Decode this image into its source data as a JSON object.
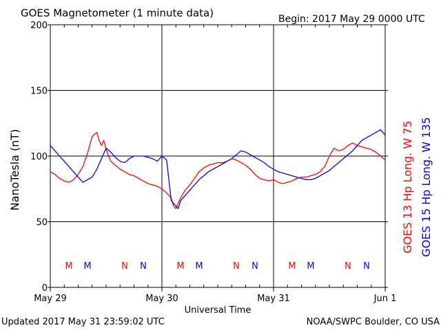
{
  "header": {
    "title": "GOES Magnetometer (1 minute data)",
    "begin": "Begin:  2017 May 29 0000 UTC"
  },
  "footer": {
    "updated": "Updated 2017 May 31 23:59:02 UTC",
    "source": "NOAA/SWPC Boulder, CO USA"
  },
  "colors": {
    "red": "#ff0000",
    "blue": "#0000ff",
    "axis": "#000000"
  },
  "chart_data": {
    "type": "line",
    "title": "GOES Magnetometer (1 minute data)",
    "xlabel": "Universal Time",
    "ylabel": "NanoTesla (nT)",
    "xlim": [
      0,
      72
    ],
    "ylim": [
      0,
      200
    ],
    "y_ticks": [
      0,
      50,
      100,
      150,
      200
    ],
    "x_ticks": [
      {
        "label": "May 29",
        "hour": 0
      },
      {
        "label": "May 30",
        "hour": 24
      },
      {
        "label": "May 31",
        "hour": 48
      },
      {
        "label": "Jun 1",
        "hour": 72
      }
    ],
    "grid": true,
    "series": [
      {
        "name": "GOES 13 Hp  Long. W 75",
        "color": "#ff0000",
        "x": [
          0,
          1,
          2,
          3,
          4,
          5,
          6,
          7,
          8,
          9,
          10,
          10.5,
          11,
          11.5,
          12,
          13,
          14,
          15,
          16,
          17,
          18,
          19,
          20,
          21,
          22,
          23,
          24,
          25,
          26,
          26.5,
          27,
          27.5,
          28,
          29,
          30,
          31,
          32,
          33,
          34,
          35,
          36,
          37,
          38,
          39,
          40,
          41,
          42,
          43,
          44,
          45,
          46,
          47,
          48,
          49,
          50,
          51,
          52,
          53,
          54,
          55,
          56,
          57,
          58,
          59,
          60,
          61,
          62,
          63,
          64,
          65,
          66,
          67,
          68,
          69,
          70,
          71,
          72
        ],
        "y": [
          88,
          86,
          83,
          81,
          80,
          82,
          86,
          92,
          102,
          115,
          118,
          112,
          108,
          112,
          105,
          96,
          93,
          90,
          88,
          86,
          85,
          83,
          81,
          79,
          78,
          77,
          75,
          72,
          68,
          62,
          60,
          64,
          68,
          74,
          78,
          83,
          88,
          91,
          93,
          94,
          95,
          95,
          96,
          98,
          97,
          95,
          93,
          90,
          86,
          83,
          82,
          81,
          82,
          80,
          79,
          80,
          81,
          83,
          84,
          84,
          85,
          86,
          88,
          92,
          100,
          106,
          104,
          105,
          108,
          110,
          108,
          107,
          106,
          105,
          103,
          100,
          97
        ]
      },
      {
        "name": "GOES 15 Hp  Long. W 135",
        "color": "#0000ff",
        "x": [
          0,
          1,
          2,
          3,
          4,
          5,
          6,
          7,
          8,
          9,
          10,
          11,
          12,
          13,
          14,
          15,
          16,
          17,
          18,
          19,
          20,
          21,
          22,
          23,
          24,
          25,
          25.5,
          26,
          27,
          27.5,
          28,
          29,
          30,
          31,
          32,
          33,
          34,
          35,
          36,
          37,
          38,
          39,
          40,
          41,
          42,
          43,
          44,
          45,
          46,
          47,
          48,
          49,
          50,
          51,
          52,
          53,
          54,
          55,
          56,
          57,
          58,
          59,
          60,
          61,
          62,
          63,
          64,
          65,
          66,
          67,
          68,
          69,
          70,
          71,
          72
        ],
        "y": [
          108,
          104,
          100,
          96,
          92,
          88,
          84,
          80,
          82,
          84,
          90,
          98,
          106,
          103,
          99,
          96,
          95,
          98,
          100,
          100,
          100,
          99,
          98,
          96,
          100,
          97,
          82,
          66,
          62,
          60,
          66,
          70,
          74,
          78,
          82,
          85,
          88,
          90,
          92,
          94,
          96,
          98,
          101,
          104,
          103,
          101,
          99,
          97,
          95,
          92,
          90,
          88,
          87,
          86,
          85,
          84,
          83,
          82,
          82,
          83,
          85,
          87,
          89,
          92,
          95,
          98,
          101,
          104,
          108,
          112,
          114,
          116,
          118,
          120,
          116
        ]
      }
    ],
    "markers": [
      {
        "label": "M",
        "hour": 4.0,
        "color": "#ff0000"
      },
      {
        "label": "M",
        "hour": 8.0,
        "color": "#0000ff"
      },
      {
        "label": "N",
        "hour": 16.0,
        "color": "#ff0000"
      },
      {
        "label": "N",
        "hour": 20.0,
        "color": "#0000ff"
      },
      {
        "label": "M",
        "hour": 28.0,
        "color": "#ff0000"
      },
      {
        "label": "M",
        "hour": 32.0,
        "color": "#0000ff"
      },
      {
        "label": "N",
        "hour": 40.0,
        "color": "#ff0000"
      },
      {
        "label": "N",
        "hour": 44.0,
        "color": "#0000ff"
      },
      {
        "label": "M",
        "hour": 52.0,
        "color": "#ff0000"
      },
      {
        "label": "M",
        "hour": 56.0,
        "color": "#0000ff"
      },
      {
        "label": "N",
        "hour": 64.0,
        "color": "#ff0000"
      },
      {
        "label": "N",
        "hour": 68.0,
        "color": "#0000ff"
      }
    ]
  }
}
